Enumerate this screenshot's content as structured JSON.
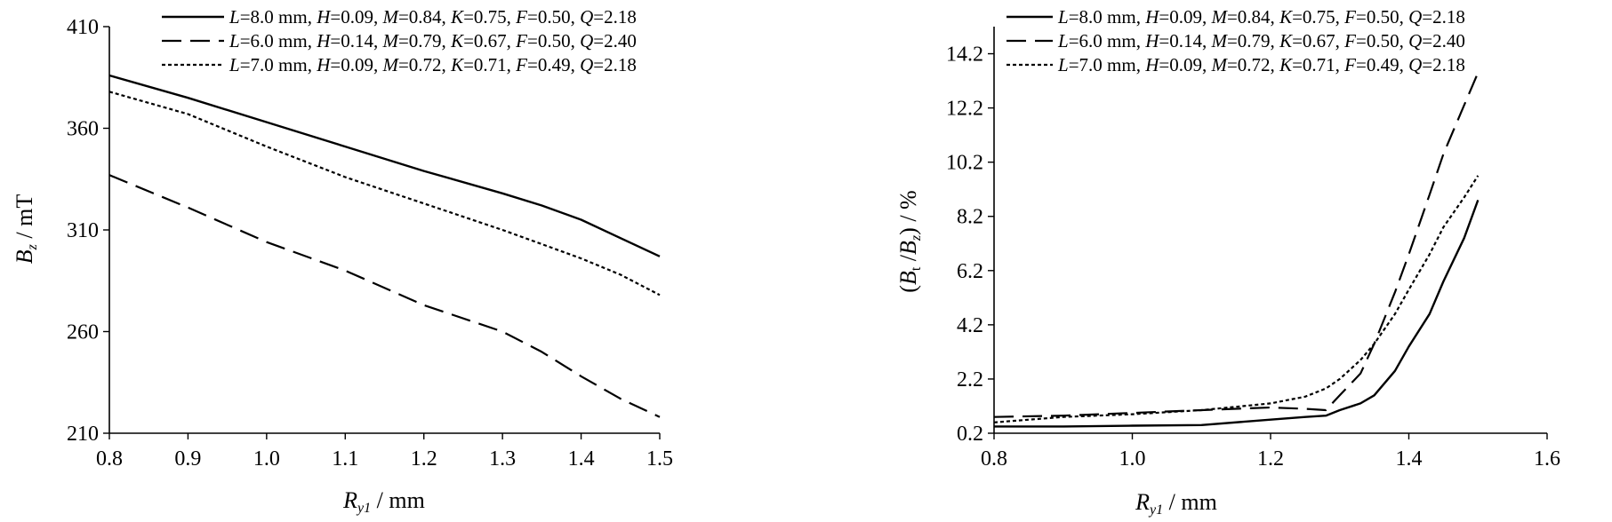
{
  "chart_data": [
    {
      "type": "line",
      "title": "",
      "xlabel_main": "R",
      "xlabel_sub": "y1",
      "xlabel_unit": " / mm",
      "ylabel_main": "B",
      "ylabel_sub": "z",
      "ylabel_unit": " / mT",
      "xlim": [
        0.8,
        1.5
      ],
      "ylim": [
        210,
        410
      ],
      "xticks": [
        0.8,
        0.9,
        1.0,
        1.1,
        1.2,
        1.3,
        1.4,
        1.5
      ],
      "xtick_labels": [
        "0.8",
        "0.9",
        "1.0",
        "1.1",
        "1.2",
        "1.3",
        "1.4",
        "1.5"
      ],
      "yticks": [
        210,
        260,
        310,
        360,
        410
      ],
      "ytick_labels": [
        "210",
        "260",
        "310",
        "360",
        "410"
      ],
      "grid": false,
      "legend_position": "top-right",
      "series": [
        {
          "legend": [
            {
              "t": "L",
              "i": true
            },
            {
              "t": "=8.0 mm, "
            },
            {
              "t": "H",
              "i": true
            },
            {
              "t": "=0.09, "
            },
            {
              "t": "M",
              "i": true
            },
            {
              "t": "=0.84, "
            },
            {
              "t": "K",
              "i": true
            },
            {
              "t": "=0.75, "
            },
            {
              "t": "F",
              "i": true
            },
            {
              "t": "=0.50, "
            },
            {
              "t": "Q",
              "i": true
            },
            {
              "t": "=2.18"
            }
          ],
          "style": "solid",
          "x": [
            0.8,
            0.9,
            1.0,
            1.1,
            1.2,
            1.3,
            1.35,
            1.4,
            1.45,
            1.5
          ],
          "y": [
            386,
            375,
            363,
            351,
            339,
            328,
            322,
            315,
            306,
            297
          ]
        },
        {
          "legend": [
            {
              "t": "L",
              "i": true
            },
            {
              "t": "=6.0 mm, "
            },
            {
              "t": "H",
              "i": true
            },
            {
              "t": "=0.14, "
            },
            {
              "t": "M",
              "i": true
            },
            {
              "t": "=0.79, "
            },
            {
              "t": "K",
              "i": true
            },
            {
              "t": "=0.67, "
            },
            {
              "t": "F",
              "i": true
            },
            {
              "t": "=0.50, "
            },
            {
              "t": "Q",
              "i": true
            },
            {
              "t": "=2.40"
            }
          ],
          "style": "dashed",
          "x": [
            0.8,
            0.9,
            1.0,
            1.1,
            1.2,
            1.3,
            1.35,
            1.4,
            1.45,
            1.5
          ],
          "y": [
            337,
            321,
            304,
            290,
            273,
            260,
            250,
            238,
            227,
            218
          ]
        },
        {
          "legend": [
            {
              "t": "L",
              "i": true
            },
            {
              "t": "=7.0 mm, "
            },
            {
              "t": "H",
              "i": true
            },
            {
              "t": "=0.09, "
            },
            {
              "t": "M",
              "i": true
            },
            {
              "t": "=0.72, "
            },
            {
              "t": "K",
              "i": true
            },
            {
              "t": "=0.71, "
            },
            {
              "t": "F",
              "i": true
            },
            {
              "t": "=0.49, "
            },
            {
              "t": "Q",
              "i": true
            },
            {
              "t": "=2.18"
            }
          ],
          "style": "dotted",
          "x": [
            0.8,
            0.9,
            1.0,
            1.1,
            1.2,
            1.3,
            1.35,
            1.4,
            1.45,
            1.5
          ],
          "y": [
            378,
            367,
            351,
            336,
            323,
            310,
            303,
            296,
            288,
            278
          ]
        }
      ]
    },
    {
      "type": "line",
      "title": "",
      "xlabel_main": "R",
      "xlabel_sub": "y1",
      "xlabel_unit": " / mm",
      "ylabel_prefix": "(",
      "ylabel_b1": "B",
      "ylabel_s1": "t",
      "ylabel_mid": " /",
      "ylabel_b2": "B",
      "ylabel_s2": "z",
      "ylabel_unit": ") / %",
      "xlim": [
        0.8,
        1.6
      ],
      "ylim": [
        0.2,
        15.2
      ],
      "xticks": [
        0.8,
        1.0,
        1.2,
        1.4,
        1.6
      ],
      "xtick_labels": [
        "0.8",
        "1.0",
        "1.2",
        "1.4",
        "1.6"
      ],
      "yticks": [
        0.2,
        2.2,
        4.2,
        6.2,
        8.2,
        10.2,
        12.2,
        14.2
      ],
      "ytick_labels": [
        "0.2",
        "2.2",
        "4.2",
        "6.2",
        "8.2",
        "10.2",
        "12.2",
        "14.2"
      ],
      "grid": false,
      "legend_position": "top-right",
      "series": [
        {
          "legend": [
            {
              "t": "L",
              "i": true
            },
            {
              "t": "=8.0 mm, "
            },
            {
              "t": "H",
              "i": true
            },
            {
              "t": "=0.09, "
            },
            {
              "t": "M",
              "i": true
            },
            {
              "t": "=0.84, "
            },
            {
              "t": "K",
              "i": true
            },
            {
              "t": "=0.75, "
            },
            {
              "t": "F",
              "i": true
            },
            {
              "t": "=0.50, "
            },
            {
              "t": "Q",
              "i": true
            },
            {
              "t": "=2.18"
            }
          ],
          "style": "solid",
          "x": [
            0.8,
            0.9,
            1.0,
            1.1,
            1.2,
            1.25,
            1.28,
            1.3,
            1.33,
            1.35,
            1.38,
            1.4,
            1.43,
            1.45,
            1.48,
            1.5
          ],
          "y": [
            0.45,
            0.45,
            0.48,
            0.5,
            0.7,
            0.8,
            0.85,
            1.05,
            1.3,
            1.6,
            2.5,
            3.4,
            4.6,
            5.8,
            7.4,
            8.8
          ]
        },
        {
          "legend": [
            {
              "t": "L",
              "i": true
            },
            {
              "t": "=6.0 mm, "
            },
            {
              "t": "H",
              "i": true
            },
            {
              "t": "=0.14, "
            },
            {
              "t": "M",
              "i": true
            },
            {
              "t": "=0.79, "
            },
            {
              "t": "K",
              "i": true
            },
            {
              "t": "=0.67, "
            },
            {
              "t": "F",
              "i": true
            },
            {
              "t": "=0.50, "
            },
            {
              "t": "Q",
              "i": true
            },
            {
              "t": "=2.40"
            }
          ],
          "style": "dashed",
          "x": [
            0.8,
            0.9,
            1.0,
            1.1,
            1.2,
            1.25,
            1.28,
            1.3,
            1.33,
            1.35,
            1.38,
            1.4,
            1.43,
            1.45,
            1.48,
            1.5
          ],
          "y": [
            0.8,
            0.85,
            0.95,
            1.05,
            1.15,
            1.1,
            1.05,
            1.6,
            2.4,
            3.5,
            5.4,
            6.8,
            9.0,
            10.5,
            12.3,
            13.5
          ]
        },
        {
          "legend": [
            {
              "t": "L",
              "i": true
            },
            {
              "t": "=7.0 mm, "
            },
            {
              "t": "H",
              "i": true
            },
            {
              "t": "=0.09, "
            },
            {
              "t": "M",
              "i": true
            },
            {
              "t": "=0.72, "
            },
            {
              "t": "K",
              "i": true
            },
            {
              "t": "=0.71, "
            },
            {
              "t": "F",
              "i": true
            },
            {
              "t": "=0.49, "
            },
            {
              "t": "Q",
              "i": true
            },
            {
              "t": "=2.18"
            }
          ],
          "style": "dotted",
          "x": [
            0.8,
            0.9,
            1.0,
            1.1,
            1.2,
            1.25,
            1.28,
            1.3,
            1.33,
            1.35,
            1.38,
            1.4,
            1.43,
            1.45,
            1.48,
            1.5
          ],
          "y": [
            0.6,
            0.8,
            0.9,
            1.05,
            1.3,
            1.55,
            1.85,
            2.2,
            2.9,
            3.5,
            4.6,
            5.5,
            6.8,
            7.8,
            8.9,
            9.7
          ]
        }
      ]
    }
  ]
}
